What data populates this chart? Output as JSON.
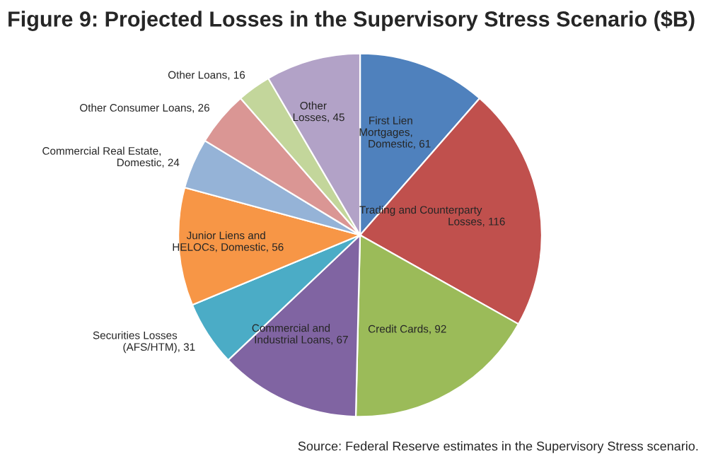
{
  "chart_data": {
    "type": "pie",
    "title": "Figure 9: Projected Losses in the Supervisory Stress Scenario ($B)",
    "categories": [
      "First Lien\nMortgages,\nDomestic",
      "Trading and Counterparty\nLosses",
      "Credit Cards",
      "Commercial and\nIndustrial Loans",
      "Securities Losses\n(AFS/HTM)",
      "Junior Liens and\nHELOCs, Domestic",
      "Commercial Real Estate,\nDomestic",
      "Other Consumer Loans",
      "Other Loans",
      "Other\nLosses"
    ],
    "values": [
      61,
      116,
      92,
      67,
      31,
      56,
      24,
      26,
      16,
      45
    ],
    "colors": [
      "#4f81bd",
      "#c0504d",
      "#9bbb59",
      "#8064a2",
      "#4bacc6",
      "#f79646",
      "#95b3d7",
      "#da9694",
      "#c3d69b",
      "#b2a2c7"
    ],
    "value_labels": [
      ", 61",
      ", 116",
      ", 92",
      ", 67",
      ", 31",
      ", 56",
      ", 24",
      ", 26",
      ", 16",
      ", 45"
    ],
    "legend": false,
    "annotations": [
      "Source: Federal Reserve estimates in the Supervisory Stress scenario."
    ]
  }
}
